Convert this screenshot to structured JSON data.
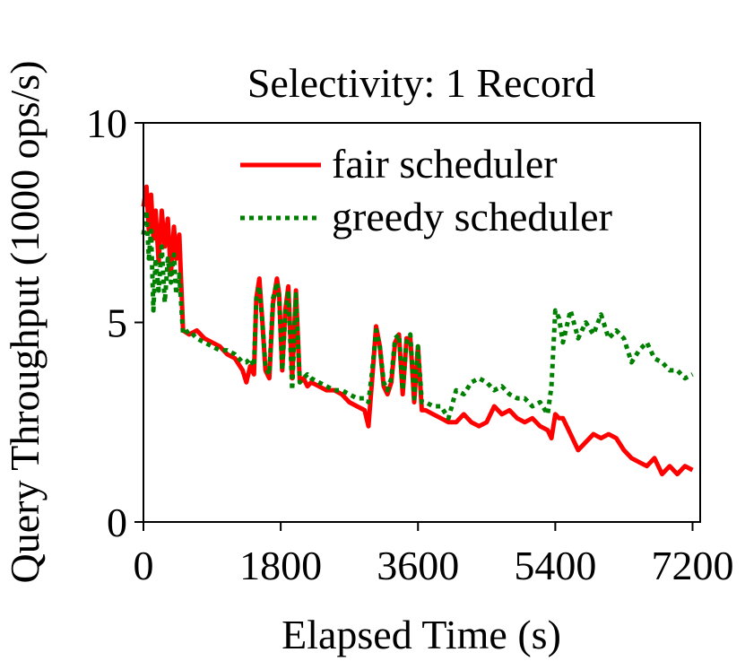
{
  "chart_data": {
    "type": "line",
    "title": "Selectivity: 1 Record",
    "xlabel": "Elapsed Time (s)",
    "ylabel": "Query Throughput (1000 ops/s)",
    "xlim": [
      0,
      7300
    ],
    "ylim": [
      0,
      10
    ],
    "xticks": [
      0,
      1800,
      3600,
      5400,
      7200
    ],
    "yticks": [
      0,
      5,
      10
    ],
    "xtick_labels": [
      "0",
      "1800",
      "3600",
      "5400",
      "7200"
    ],
    "ytick_labels": [
      "0",
      "5",
      "10"
    ],
    "legend_position": "top-right",
    "series": [
      {
        "name": "fair scheduler",
        "color": "#ff0000",
        "style": "solid",
        "x": [
          0,
          40,
          70,
          100,
          130,
          160,
          200,
          240,
          280,
          320,
          360,
          400,
          430,
          470,
          520,
          600,
          700,
          800,
          900,
          1000,
          1100,
          1200,
          1300,
          1350,
          1400,
          1450,
          1480,
          1520,
          1560,
          1600,
          1650,
          1700,
          1750,
          1780,
          1820,
          1860,
          1900,
          1950,
          2000,
          2050,
          2100,
          2150,
          2200,
          2300,
          2400,
          2500,
          2600,
          2700,
          2800,
          2900,
          2950,
          3000,
          3050,
          3100,
          3150,
          3200,
          3250,
          3300,
          3350,
          3400,
          3450,
          3500,
          3550,
          3600,
          3650,
          3700,
          3800,
          3900,
          4000,
          4100,
          4200,
          4300,
          4400,
          4500,
          4600,
          4700,
          4800,
          4900,
          5000,
          5100,
          5200,
          5300,
          5350,
          5400,
          5450,
          5500,
          5600,
          5700,
          5800,
          5900,
          6000,
          6100,
          6200,
          6300,
          6400,
          6500,
          6600,
          6700,
          6800,
          6900,
          7000,
          7100,
          7200
        ],
        "values": [
          7.9,
          8.4,
          7.3,
          8.2,
          7.1,
          7.8,
          6.5,
          7.8,
          6.9,
          7.6,
          6.2,
          7.4,
          6.6,
          7.2,
          4.8,
          4.7,
          4.8,
          4.6,
          4.5,
          4.4,
          4.2,
          4.1,
          3.8,
          3.5,
          3.9,
          3.7,
          5.6,
          6.1,
          5.0,
          3.8,
          3.6,
          5.5,
          6.1,
          5.7,
          3.8,
          5.3,
          5.9,
          3.6,
          5.8,
          3.5,
          3.6,
          3.4,
          3.5,
          3.4,
          3.3,
          3.3,
          3.2,
          3.0,
          2.9,
          2.8,
          2.4,
          3.6,
          4.9,
          4.4,
          3.4,
          3.2,
          3.5,
          4.5,
          4.7,
          3.2,
          4.6,
          4.6,
          3.0,
          4.4,
          2.8,
          2.8,
          2.7,
          2.6,
          2.5,
          2.5,
          2.7,
          2.5,
          2.4,
          2.5,
          2.9,
          2.7,
          2.8,
          2.6,
          2.5,
          2.6,
          2.4,
          2.3,
          2.1,
          2.7,
          2.6,
          2.6,
          2.2,
          1.8,
          2.0,
          2.2,
          2.1,
          2.2,
          2.1,
          1.8,
          1.6,
          1.5,
          1.4,
          1.6,
          1.2,
          1.4,
          1.2,
          1.4,
          1.3
        ]
      },
      {
        "name": "greedy scheduler",
        "color": "#008000",
        "style": "dotted",
        "x": [
          0,
          40,
          70,
          100,
          130,
          160,
          200,
          240,
          280,
          320,
          360,
          400,
          430,
          470,
          520,
          600,
          700,
          800,
          900,
          1000,
          1100,
          1200,
          1300,
          1350,
          1400,
          1450,
          1480,
          1520,
          1560,
          1600,
          1650,
          1700,
          1750,
          1780,
          1820,
          1860,
          1900,
          1950,
          2000,
          2050,
          2100,
          2150,
          2200,
          2300,
          2400,
          2500,
          2600,
          2700,
          2800,
          2900,
          2950,
          3000,
          3050,
          3100,
          3150,
          3200,
          3250,
          3300,
          3350,
          3400,
          3450,
          3500,
          3550,
          3600,
          3650,
          3700,
          3800,
          3900,
          4000,
          4100,
          4200,
          4300,
          4400,
          4500,
          4600,
          4700,
          4800,
          4900,
          5000,
          5100,
          5200,
          5300,
          5350,
          5400,
          5450,
          5500,
          5600,
          5700,
          5800,
          5900,
          6000,
          6100,
          6200,
          6300,
          6400,
          6500,
          6600,
          6700,
          6800,
          6900,
          7000,
          7100,
          7200
        ],
        "values": [
          7.2,
          7.8,
          6.6,
          7.3,
          5.3,
          6.6,
          5.8,
          6.9,
          5.5,
          6.6,
          6.0,
          6.7,
          5.7,
          6.2,
          4.7,
          4.8,
          4.6,
          4.5,
          4.4,
          4.3,
          4.3,
          4.2,
          4.0,
          4.0,
          4.1,
          3.9,
          5.6,
          5.9,
          5.0,
          3.9,
          3.7,
          5.6,
          6.0,
          5.6,
          3.8,
          5.2,
          5.8,
          3.3,
          5.7,
          3.5,
          3.6,
          3.7,
          3.6,
          3.5,
          3.4,
          3.3,
          3.3,
          3.2,
          3.1,
          3.1,
          3.0,
          3.8,
          4.8,
          4.4,
          3.5,
          3.3,
          3.6,
          4.6,
          4.7,
          3.3,
          4.5,
          4.7,
          3.1,
          4.4,
          3.0,
          3.0,
          2.9,
          2.9,
          2.6,
          3.3,
          3.2,
          3.5,
          3.6,
          3.5,
          3.3,
          3.4,
          3.2,
          3.1,
          3.1,
          2.9,
          3.0,
          2.7,
          3.4,
          5.3,
          5.1,
          4.5,
          5.3,
          4.6,
          5.0,
          4.7,
          5.2,
          4.6,
          4.8,
          4.6,
          4.0,
          4.3,
          4.5,
          4.1,
          4.0,
          3.8,
          3.8,
          3.6,
          3.7
        ]
      }
    ]
  }
}
